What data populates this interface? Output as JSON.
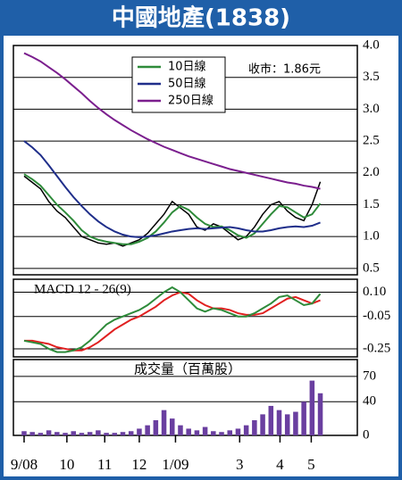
{
  "title": "中國地產(1838)",
  "chart_data": [
    {
      "type": "line",
      "annotation": "收市：1.86元",
      "x": [
        0,
        1,
        2,
        3,
        4,
        5,
        6,
        7,
        8,
        9,
        10,
        11,
        12,
        13,
        14,
        15,
        16,
        17,
        18,
        19,
        20,
        21,
        22,
        23,
        24,
        25,
        26,
        27,
        28,
        29,
        30,
        31,
        32,
        33,
        34,
        35,
        36
      ],
      "xlim": [
        -1.3,
        40.5
      ],
      "ylim": [
        0.4,
        4.0
      ],
      "yticks": [
        {
          "value": 4,
          "label": "4.0"
        },
        3.5,
        {
          "value": 3,
          "label": "3.0"
        },
        2.5,
        {
          "value": 2,
          "label": "2.0"
        },
        1.5,
        {
          "value": 1,
          "label": "1.0"
        },
        0.5
      ],
      "grid": true,
      "series": [
        {
          "color": "#000000",
          "values": [
            1.95,
            1.85,
            1.75,
            1.55,
            1.4,
            1.3,
            1.15,
            1.0,
            0.95,
            0.9,
            0.88,
            0.9,
            0.85,
            0.9,
            0.95,
            1.05,
            1.2,
            1.35,
            1.55,
            1.45,
            1.35,
            1.15,
            1.1,
            1.2,
            1.15,
            1.05,
            0.95,
            1.0,
            1.15,
            1.35,
            1.5,
            1.55,
            1.4,
            1.3,
            1.25,
            1.5,
            1.86
          ]
        },
        {
          "name": "10日線",
          "color": "#2e8b3a",
          "values": [
            1.98,
            1.9,
            1.8,
            1.65,
            1.5,
            1.38,
            1.25,
            1.1,
            1.0,
            0.95,
            0.92,
            0.9,
            0.88,
            0.88,
            0.92,
            0.98,
            1.08,
            1.22,
            1.38,
            1.48,
            1.42,
            1.3,
            1.2,
            1.15,
            1.16,
            1.1,
            1.02,
            0.98,
            1.05,
            1.2,
            1.35,
            1.48,
            1.46,
            1.38,
            1.3,
            1.35,
            1.52
          ]
        },
        {
          "name": "50日線",
          "color": "#1f2e8a",
          "values": [
            2.5,
            2.4,
            2.28,
            2.12,
            1.95,
            1.78,
            1.62,
            1.48,
            1.35,
            1.24,
            1.15,
            1.08,
            1.03,
            1.0,
            0.99,
            1.0,
            1.02,
            1.05,
            1.08,
            1.1,
            1.12,
            1.13,
            1.12,
            1.13,
            1.14,
            1.15,
            1.13,
            1.1,
            1.08,
            1.08,
            1.1,
            1.13,
            1.15,
            1.16,
            1.15,
            1.17,
            1.22
          ]
        },
        {
          "name": "250日線",
          "color": "#7b1f8e",
          "values": [
            3.88,
            3.82,
            3.75,
            3.66,
            3.57,
            3.47,
            3.36,
            3.25,
            3.13,
            3.02,
            2.92,
            2.83,
            2.75,
            2.67,
            2.6,
            2.53,
            2.47,
            2.41,
            2.36,
            2.31,
            2.26,
            2.22,
            2.18,
            2.14,
            2.1,
            2.06,
            2.03,
            2.0,
            1.97,
            1.94,
            1.91,
            1.88,
            1.85,
            1.83,
            1.8,
            1.78,
            1.75
          ]
        }
      ],
      "legend": "top"
    },
    {
      "type": "line",
      "label": "MACD 12 - 26(9)",
      "x": [
        0,
        1,
        2,
        3,
        4,
        5,
        6,
        7,
        8,
        9,
        10,
        11,
        12,
        13,
        14,
        15,
        16,
        17,
        18,
        19,
        20,
        21,
        22,
        23,
        24,
        25,
        26,
        27,
        28,
        29,
        30,
        31,
        32,
        33,
        34,
        35,
        36
      ],
      "xlim": [
        -1.3,
        40.5
      ],
      "ylim": [
        -0.3,
        0.18
      ],
      "yticks": [
        {
          "value": 0.1,
          "label": "0.10"
        },
        -0.05,
        -0.25
      ],
      "grid": true,
      "series": [
        {
          "color": "#e02020",
          "values": [
            -0.2,
            -0.2,
            -0.21,
            -0.22,
            -0.24,
            -0.25,
            -0.26,
            -0.26,
            -0.24,
            -0.21,
            -0.17,
            -0.13,
            -0.1,
            -0.07,
            -0.05,
            -0.02,
            0.01,
            0.05,
            0.08,
            0.1,
            0.09,
            0.05,
            0.02,
            0.0,
            0.0,
            -0.01,
            -0.03,
            -0.04,
            -0.04,
            -0.03,
            0.0,
            0.03,
            0.06,
            0.07,
            0.05,
            0.03,
            0.05
          ]
        },
        {
          "color": "#2e8b3a",
          "values": [
            -0.2,
            -0.21,
            -0.22,
            -0.25,
            -0.27,
            -0.27,
            -0.26,
            -0.24,
            -0.2,
            -0.15,
            -0.1,
            -0.07,
            -0.05,
            -0.03,
            -0.01,
            0.02,
            0.06,
            0.1,
            0.13,
            0.1,
            0.05,
            0.0,
            -0.02,
            0.0,
            -0.01,
            -0.03,
            -0.05,
            -0.05,
            -0.03,
            0.0,
            0.03,
            0.07,
            0.08,
            0.05,
            0.02,
            0.03,
            0.09
          ]
        }
      ]
    },
    {
      "type": "bar",
      "label": "成交量（百萬股）",
      "x": [
        0,
        1,
        2,
        3,
        4,
        5,
        6,
        7,
        8,
        9,
        10,
        11,
        12,
        13,
        14,
        15,
        16,
        17,
        18,
        19,
        20,
        21,
        22,
        23,
        24,
        25,
        26,
        27,
        28,
        29,
        30,
        31,
        32,
        33,
        34,
        35,
        36
      ],
      "xlim": [
        -1.3,
        40.5
      ],
      "ylim": [
        0,
        90
      ],
      "yticks": [
        70,
        40,
        0
      ],
      "grid": true,
      "color": "#6a3fa0",
      "values": [
        5,
        4,
        3,
        6,
        4,
        3,
        5,
        3,
        4,
        6,
        3,
        3,
        4,
        5,
        8,
        12,
        18,
        30,
        20,
        12,
        8,
        6,
        10,
        5,
        4,
        6,
        8,
        12,
        18,
        25,
        35,
        30,
        25,
        28,
        40,
        65,
        50
      ],
      "xticks": [
        {
          "value": 0,
          "label": "9/08"
        },
        {
          "value": 5.2,
          "label": "10"
        },
        {
          "value": 9.8,
          "label": "11"
        },
        {
          "value": 14.0,
          "label": "12"
        },
        {
          "value": 18.4,
          "label": "1/09"
        },
        {
          "value": 26.2,
          "label": "3"
        },
        {
          "value": 31.1,
          "label": "4"
        },
        {
          "value": 34.9,
          "label": "5"
        }
      ]
    }
  ]
}
